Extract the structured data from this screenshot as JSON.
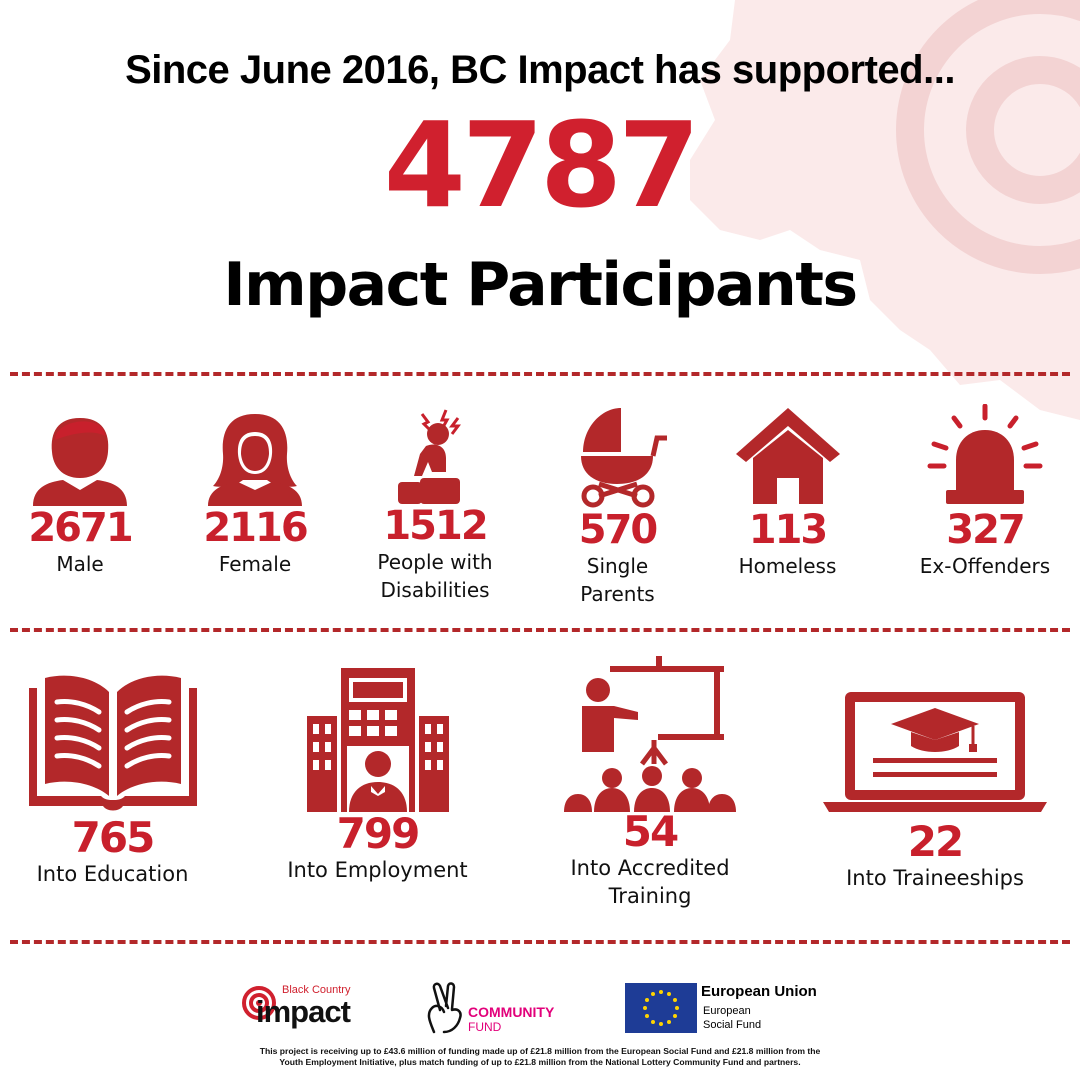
{
  "header": {
    "headline": "Since June 2016, BC Impact has supported...",
    "total": "4787",
    "total_label": "Impact Participants"
  },
  "colors": {
    "accent": "#d0202e",
    "icon": "#b3282a",
    "divider": "#b3282a"
  },
  "demographics": [
    {
      "icon": "male-icon",
      "value": "2671",
      "label_lines": [
        "Male"
      ]
    },
    {
      "icon": "female-icon",
      "value": "2116",
      "label_lines": [
        "Female"
      ]
    },
    {
      "icon": "disability-icon",
      "value": "1512",
      "label_lines": [
        "People with",
        "Disabilities"
      ]
    },
    {
      "icon": "pram-icon",
      "value": "570",
      "label_lines": [
        "Single",
        "Parents"
      ]
    },
    {
      "icon": "house-icon",
      "value": "113",
      "label_lines": [
        "Homeless"
      ]
    },
    {
      "icon": "siren-icon",
      "value": "327",
      "label_lines": [
        "Ex-Offenders"
      ]
    }
  ],
  "outcomes": [
    {
      "icon": "book-icon",
      "value": "765",
      "label_lines": [
        "Into Education"
      ]
    },
    {
      "icon": "employment-icon",
      "value": "799",
      "label_lines": [
        "Into Employment"
      ]
    },
    {
      "icon": "presentation-icon",
      "value": "54",
      "label_lines": [
        "Into Accredited",
        "Training"
      ]
    },
    {
      "icon": "laptop-graduation-icon",
      "value": "22",
      "label_lines": [
        "Into Traineeships"
      ]
    }
  ],
  "logos": {
    "bci_small": "Black Country",
    "bci_big": "impact",
    "community_fund_line1": "COMMUNITY",
    "community_fund_line2": "FUND",
    "eu_title": "European Union",
    "eu_line1": "European",
    "eu_line2": "Social Fund"
  },
  "funding_note_line1": "This project is receiving up to £43.6 million of funding made up of £21.8 million from the European Social Fund and £21.8 million from the",
  "funding_note_line2": "Youth Employment Initiative, plus match funding of up to £21.8 million from the National Lottery Community Fund and partners."
}
